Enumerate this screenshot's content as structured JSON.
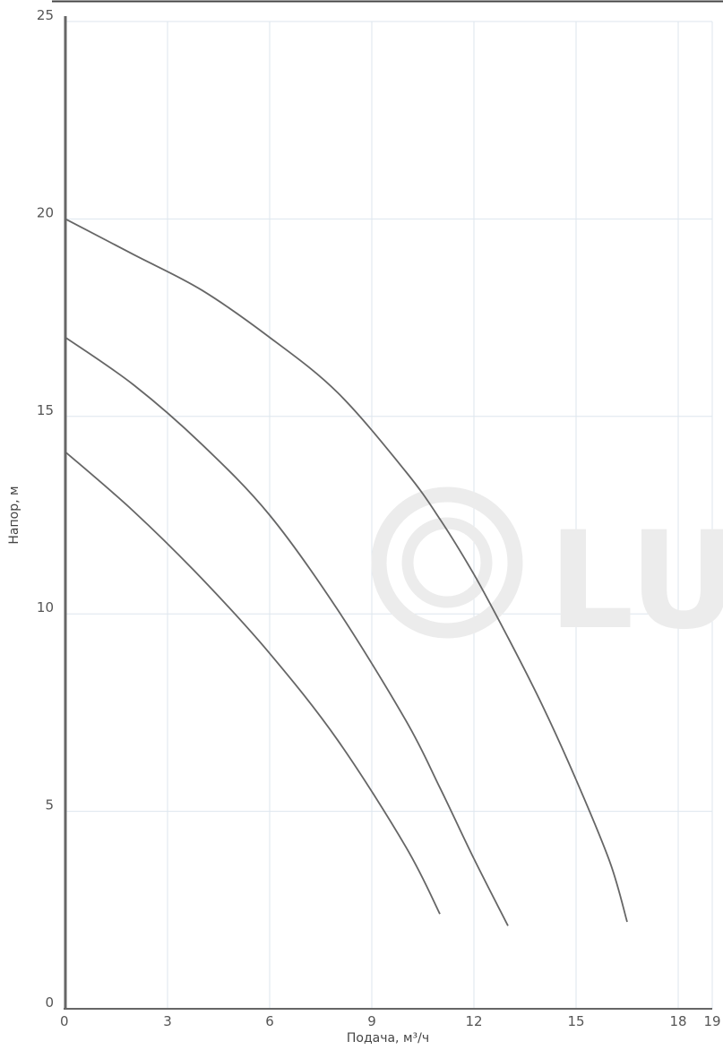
{
  "chart_data": {
    "type": "line",
    "title": "",
    "xlabel": "Подача, м³/ч",
    "ylabel": "Напор, м",
    "xlim": [
      0,
      19
    ],
    "ylim": [
      0,
      25
    ],
    "x_ticks": [
      0,
      3,
      6,
      9,
      12,
      15,
      18,
      19
    ],
    "y_ticks": [
      0,
      5,
      10,
      15,
      20,
      25
    ],
    "grid": true,
    "legend": "none",
    "series": [
      {
        "x": [
          0,
          2,
          4,
          6,
          8,
          10,
          11
        ],
        "y": [
          14.1,
          12.6,
          10.9,
          9.0,
          6.8,
          4.1,
          2.4
        ]
      },
      {
        "x": [
          0,
          2,
          4,
          6,
          8,
          10,
          11,
          12,
          13
        ],
        "y": [
          17.0,
          15.8,
          14.3,
          12.5,
          10.1,
          7.3,
          5.6,
          3.8,
          2.1
        ]
      },
      {
        "x": [
          0,
          2,
          4,
          6,
          8,
          10,
          11,
          12,
          13,
          14,
          15,
          16,
          16.5
        ],
        "y": [
          20.0,
          19.1,
          18.2,
          17.0,
          15.6,
          13.6,
          12.4,
          11.0,
          9.4,
          7.7,
          5.8,
          3.7,
          2.2
        ]
      }
    ],
    "colors": {
      "line": "#666666",
      "grid": "#dde6ee",
      "axis": "#666666",
      "watermark": "#ececec"
    },
    "watermark": "LU"
  }
}
